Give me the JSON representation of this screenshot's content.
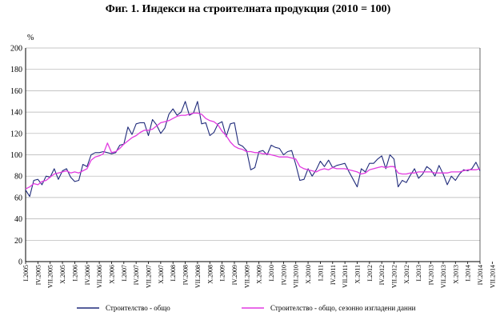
{
  "title": "Фиг. 1. Индекси на строителната продукция (2010 = 100)",
  "unit_label": "%",
  "chart_data": {
    "type": "line",
    "title": "Фиг. 1. Индекси на строителната продукция (2010 = 100)",
    "ylabel": "%",
    "ylim": [
      0,
      200
    ],
    "yticks": [
      0,
      20,
      40,
      60,
      80,
      100,
      120,
      140,
      160,
      180,
      200
    ],
    "grid": true,
    "legend_position": "bottom",
    "x_tick_labels": [
      "I.2005",
      "IV.2005",
      "VII.2005",
      "X.2005",
      "I.2006",
      "IV.2006",
      "VII.2006",
      "X.2006",
      "I.2007",
      "IV.2007",
      "VII.2007",
      "X.2007",
      "I.2008",
      "IV.2008",
      "VII.2008",
      "X.2008",
      "I.2009",
      "IV.2009",
      "VII.2009",
      "X.2009",
      "I.2010",
      "IV.2010",
      "VII.2010",
      "X.2010",
      "I.2011",
      "IV.2011",
      "VII.2011",
      "X.2011",
      "I.2012",
      "IV.2012",
      "VII.2012",
      "X.2012",
      "I.2013",
      "IV.2013",
      "VII.2013",
      "X.2013",
      "I.2014",
      "IV.2014",
      "VII.2014"
    ],
    "x_start": "I.2005",
    "x_end": "IX.2014",
    "series": [
      {
        "name": "Строителство - общо",
        "color": "#1f2a7a",
        "values": [
          67,
          61,
          76,
          77,
          72,
          80,
          79,
          87,
          77,
          85,
          87,
          79,
          75,
          76,
          91,
          89,
          100,
          102,
          102,
          103,
          102,
          101,
          102,
          109,
          110,
          126,
          119,
          129,
          130,
          130,
          118,
          133,
          128,
          120,
          125,
          138,
          143,
          137,
          140,
          150,
          137,
          139,
          150,
          129,
          130,
          118,
          121,
          129,
          131,
          117,
          129,
          130,
          110,
          108,
          104,
          86,
          88,
          103,
          104,
          100,
          109,
          107,
          106,
          100,
          103,
          104,
          91,
          76,
          77,
          87,
          80,
          86,
          94,
          89,
          95,
          88,
          90,
          91,
          92,
          84,
          77,
          70,
          87,
          84,
          92,
          92,
          96,
          99,
          87,
          100,
          96,
          70,
          76,
          74,
          81,
          87,
          78,
          82,
          89,
          86,
          80,
          90,
          82,
          72,
          80,
          76,
          82,
          86,
          85,
          87,
          93,
          85
        ]
      },
      {
        "name": "Строителство - общо, сезонно изгладени данни",
        "color": "#e23ae0",
        "values": [
          68,
          70,
          73,
          72,
          75,
          76,
          79,
          82,
          83,
          84,
          85,
          83,
          84,
          83,
          85,
          87,
          95,
          98,
          99,
          101,
          111,
          102,
          103,
          106,
          110,
          113,
          116,
          118,
          121,
          123,
          123,
          124,
          127,
          130,
          131,
          132,
          134,
          136,
          137,
          137,
          138,
          139,
          139,
          138,
          134,
          132,
          131,
          128,
          122,
          118,
          112,
          108,
          106,
          105,
          103,
          103,
          102,
          102,
          101,
          101,
          100,
          99,
          98,
          98,
          98,
          97,
          96,
          89,
          87,
          86,
          85,
          84,
          86,
          87,
          86,
          88,
          87,
          87,
          87,
          86,
          85,
          84,
          82,
          83,
          86,
          87,
          88,
          89,
          88,
          89,
          89,
          83,
          82,
          82,
          83,
          83,
          84,
          84,
          84,
          84,
          83,
          83,
          83,
          83,
          84,
          84,
          84,
          85,
          86,
          86,
          86,
          87
        ]
      }
    ]
  }
}
